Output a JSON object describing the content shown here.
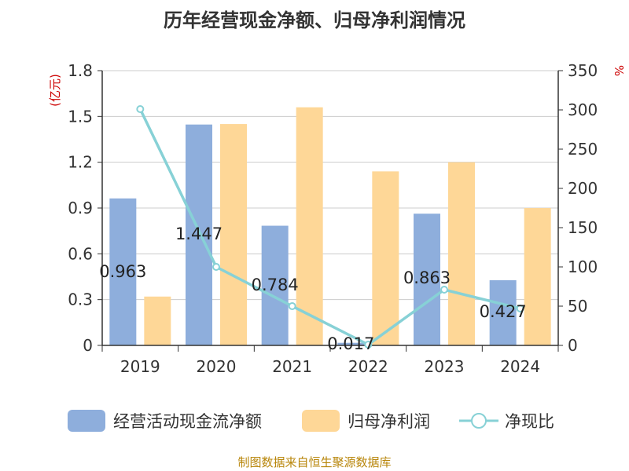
{
  "chart_data": {
    "type": "bar",
    "title": "历年经营现金净额、归母净利润情况",
    "categories": [
      "2019",
      "2020",
      "2021",
      "2022",
      "2023",
      "2024"
    ],
    "series": [
      {
        "name": "经营活动现金流净额",
        "type": "bar",
        "axis": "left",
        "color": "#8eaedc",
        "values": [
          0.963,
          1.447,
          0.784,
          0.017,
          0.863,
          0.427
        ]
      },
      {
        "name": "归母净利润",
        "type": "bar",
        "axis": "left",
        "color": "#fed797",
        "values": [
          0.32,
          1.45,
          1.56,
          1.14,
          1.2,
          0.9
        ]
      },
      {
        "name": "净现比",
        "type": "line",
        "axis": "right",
        "color": "#87d1d6",
        "values": [
          301,
          100,
          50,
          1,
          71,
          47
        ]
      }
    ],
    "data_labels": [
      "0.963",
      "1.447",
      "0.784",
      "0.017",
      "0.863",
      "0.427"
    ],
    "y_left": {
      "unit": "(亿元)",
      "ylim": [
        0,
        1.8
      ],
      "ticks": [
        "0",
        "0.3",
        "0.6",
        "0.9",
        "1.2",
        "1.5",
        "1.8"
      ]
    },
    "y_right": {
      "unit": "%",
      "ylim": [
        0,
        350
      ],
      "ticks": [
        "0",
        "50",
        "100",
        "150",
        "200",
        "250",
        "300",
        "350"
      ]
    },
    "grid": true,
    "legend_position": "bottom"
  },
  "source": "制图数据来自恒生聚源数据库",
  "colors": {
    "left_unit": "#cc0000",
    "right_unit": "#cc0000",
    "source": "#b8860b"
  }
}
